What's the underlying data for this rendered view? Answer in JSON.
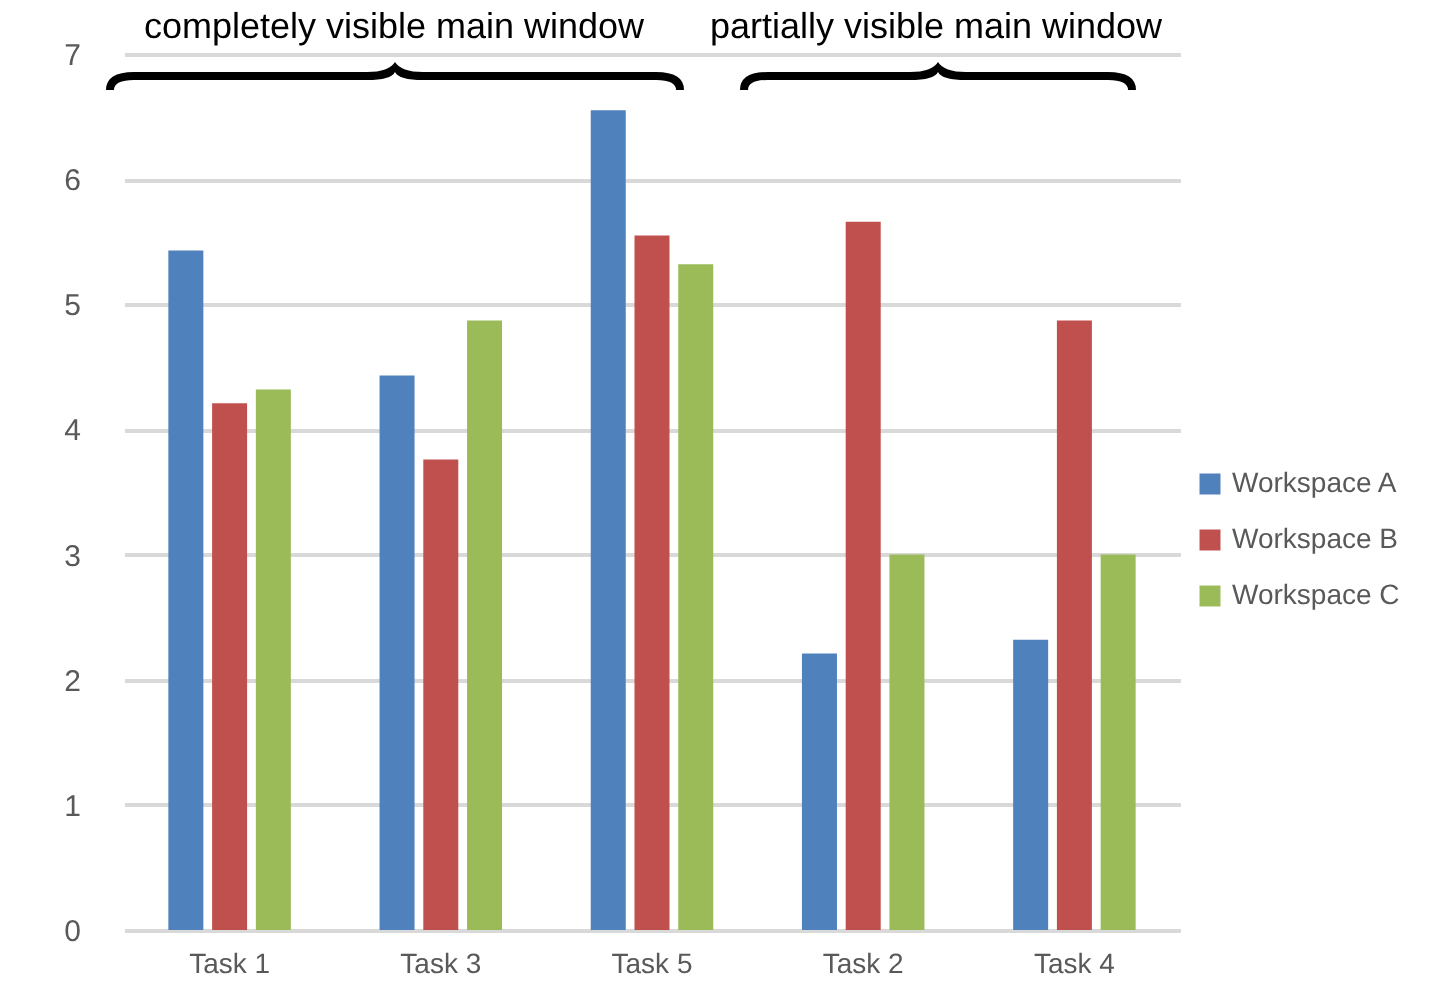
{
  "chart_data": {
    "type": "bar",
    "categories": [
      "Task 1",
      "Task 3",
      "Task 5",
      "Task 2",
      "Task 4"
    ],
    "series": [
      {
        "name": "Workspace A",
        "color": "#4f81bd",
        "values": [
          5.43,
          4.43,
          6.55,
          2.21,
          2.32
        ]
      },
      {
        "name": "Workspace B",
        "color": "#c0504d",
        "values": [
          4.21,
          3.76,
          5.55,
          5.66,
          4.87
        ]
      },
      {
        "name": "Workspace C",
        "color": "#9bbb59",
        "values": [
          4.32,
          4.87,
          5.32,
          3.0,
          3.0
        ]
      }
    ],
    "ylim": [
      0,
      7
    ],
    "yticks": [
      0,
      1,
      2,
      3,
      4,
      5,
      6,
      7
    ],
    "grid": "y",
    "legend": "right",
    "annotations": [
      "completely visible main window",
      "partially visible main window"
    ]
  }
}
